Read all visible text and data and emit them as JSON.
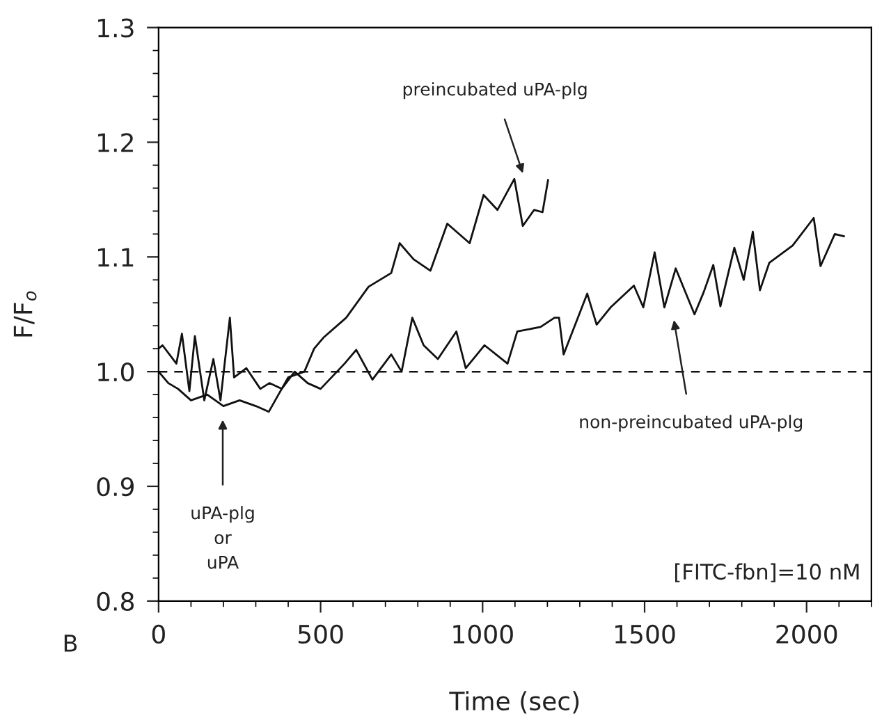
{
  "chart_data": {
    "type": "line",
    "xlabel": "Time (sec)",
    "ylabel": "F/F$_{o}$",
    "xlim": [
      0,
      2200
    ],
    "ylim": [
      0.8,
      1.3
    ],
    "xticks": [
      0,
      500,
      1000,
      1500,
      2000
    ],
    "yticks": [
      {
        "value": 0.8,
        "label": "0.8"
      },
      {
        "value": 0.9,
        "label": "0.9"
      },
      {
        "value": 1.0,
        "label": "1.0"
      },
      {
        "value": 1.1,
        "label": "1.1"
      },
      {
        "value": 1.2,
        "label": "1.2"
      },
      {
        "value": 1.3,
        "label": "1.3"
      }
    ],
    "grid": false,
    "legend": false,
    "marker": "none",
    "line_style": "solid",
    "series": [
      {
        "color": "#111111",
        "x": [
          0,
          30,
          60,
          100,
          150,
          200,
          250,
          300,
          340,
          370,
          400,
          450,
          480,
          510,
          579,
          648,
          718,
          744,
          787,
          839,
          891,
          960,
          1003,
          1046,
          1098,
          1124,
          1159,
          1185,
          1202
        ],
        "values": [
          1.0,
          0.99,
          0.985,
          0.975,
          0.98,
          0.97,
          0.975,
          0.97,
          0.965,
          0.98,
          0.995,
          1.0,
          1.02,
          1.03,
          1.047,
          1.074,
          1.086,
          1.112,
          1.098,
          1.088,
          1.129,
          1.112,
          1.154,
          1.141,
          1.168,
          1.127,
          1.141,
          1.139,
          1.167
        ]
      },
      {
        "color": "#111111",
        "x": [
          0,
          12,
          55,
          72,
          95,
          112,
          141,
          169,
          191,
          220,
          233,
          271,
          314,
          342,
          380,
          420,
          460,
          500,
          574,
          610,
          660,
          718,
          750,
          783,
          818,
          862,
          919,
          948,
          1006,
          1077,
          1107,
          1179,
          1222,
          1236,
          1250,
          1323,
          1352,
          1395,
          1467,
          1496,
          1531,
          1561,
          1596,
          1654,
          1682,
          1712,
          1734,
          1777,
          1806,
          1834,
          1856,
          1885,
          1957,
          2022,
          2043,
          2087,
          2115
        ],
        "values": [
          1.02,
          1.023,
          1.007,
          1.033,
          0.983,
          1.031,
          0.975,
          1.011,
          0.975,
          1.047,
          0.995,
          1.003,
          0.985,
          0.99,
          0.985,
          1.0,
          0.99,
          0.985,
          1.007,
          1.019,
          0.993,
          1.015,
          1.0,
          1.047,
          1.023,
          1.011,
          1.035,
          1.003,
          1.023,
          1.007,
          1.035,
          1.039,
          1.047,
          1.047,
          1.015,
          1.068,
          1.041,
          1.056,
          1.075,
          1.056,
          1.104,
          1.056,
          1.09,
          1.05,
          1.069,
          1.093,
          1.057,
          1.108,
          1.08,
          1.122,
          1.071,
          1.095,
          1.11,
          1.134,
          1.092,
          1.12,
          1.118
        ]
      }
    ],
    "ref_lines": [
      {
        "axis": "y",
        "value": 1.0,
        "color": "#111111",
        "line_style": "dashed"
      }
    ],
    "annotations": [
      "preincubated uPA-plg",
      "non-preincubated uPA-plg",
      "uPA-plg\nor\nuPA",
      "[FITC-fbn]=10 nM",
      "B"
    ]
  }
}
